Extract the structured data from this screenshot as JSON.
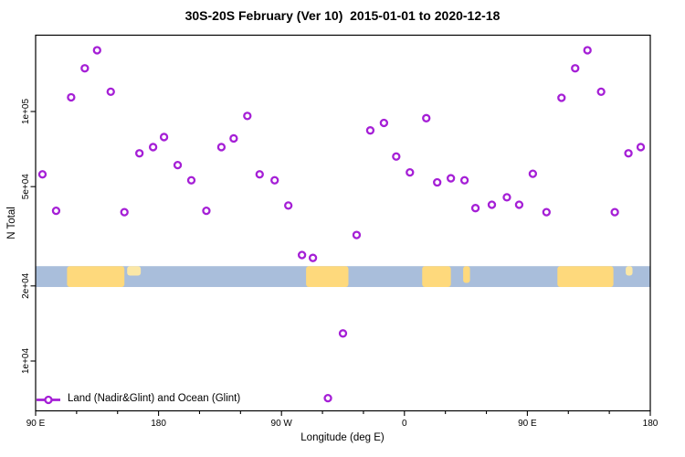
{
  "title": "30S-20S February (Ver 10)  2015-01-01 to 2020-12-18",
  "legend": {
    "label": "Land (Nadir&Glint) and Ocean (Glint)"
  },
  "colors": {
    "marker": "#a51fd6",
    "ocean": "#a9bedb",
    "land": "#fed97c",
    "land_light": "#fbe7a6",
    "axis": "#000000"
  },
  "chart_data": {
    "type": "scatter",
    "title": "30S-20S February (Ver 10)  2015-01-01 to 2020-12-18",
    "xlabel": "Longitude (deg E)",
    "ylabel": "N Total",
    "legend_position": "bottom-left",
    "grid": false,
    "x_axis": {
      "min": 90,
      "max": 540,
      "wraps_longitude": true,
      "minor_tick_step": 30,
      "major_ticks": [
        {
          "deg": 90,
          "label": "90 E"
        },
        {
          "deg": 180,
          "label": "180"
        },
        {
          "deg": 270,
          "label": "90 W"
        },
        {
          "deg": 360,
          "label": "0"
        },
        {
          "deg": 450,
          "label": "90 E"
        },
        {
          "deg": 540,
          "label": "180"
        }
      ]
    },
    "y_axis": {
      "scale": "log",
      "min": 6300,
      "max": 202000,
      "major_ticks": [
        {
          "n": 100000,
          "label": "1e+05"
        },
        {
          "n": 50000,
          "label": "5e+04"
        },
        {
          "n": 20000,
          "label": "2e+04"
        },
        {
          "n": 10000,
          "label": "1e+04"
        }
      ]
    },
    "map_band": {
      "n_top": 24000,
      "n_bottom": 19800,
      "land_segments": [
        {
          "from": 113,
          "to": 155,
          "h": 1,
          "light": false
        },
        {
          "from": 157,
          "to": 167,
          "h": 0.45,
          "light": true
        },
        {
          "from": 288,
          "to": 319,
          "h": 1,
          "light": false
        },
        {
          "from": 373,
          "to": 394,
          "h": 1,
          "light": false
        },
        {
          "from": 403,
          "to": 408,
          "h": 0.8,
          "light": false
        },
        {
          "from": 472,
          "to": 513,
          "h": 1,
          "light": false
        },
        {
          "from": 522,
          "to": 527,
          "h": 0.45,
          "light": true
        }
      ]
    },
    "series": [
      {
        "name": "Land (Nadir&Glint) and Ocean (Glint)",
        "points": [
          {
            "lon": 95,
            "n": 56000
          },
          {
            "lon": 105,
            "n": 40000
          },
          {
            "lon": 116,
            "n": 114000
          },
          {
            "lon": 126,
            "n": 149000
          },
          {
            "lon": 135,
            "n": 176000
          },
          {
            "lon": 145,
            "n": 120000
          },
          {
            "lon": 155,
            "n": 39500
          },
          {
            "lon": 166,
            "n": 68000
          },
          {
            "lon": 176,
            "n": 72000
          },
          {
            "lon": 184,
            "n": 79000
          },
          {
            "lon": 194,
            "n": 61000
          },
          {
            "lon": 204,
            "n": 53000
          },
          {
            "lon": 215,
            "n": 40000
          },
          {
            "lon": 226,
            "n": 72000
          },
          {
            "lon": 235,
            "n": 78000
          },
          {
            "lon": 245,
            "n": 96000
          },
          {
            "lon": 254,
            "n": 56000
          },
          {
            "lon": 265,
            "n": 53000
          },
          {
            "lon": 275,
            "n": 42000
          },
          {
            "lon": 285,
            "n": 26600
          },
          {
            "lon": 293,
            "n": 25900
          },
          {
            "lon": 304,
            "n": 7100
          },
          {
            "lon": 315,
            "n": 12900
          },
          {
            "lon": 325,
            "n": 32000
          },
          {
            "lon": 335,
            "n": 84000
          },
          {
            "lon": 345,
            "n": 90000
          },
          {
            "lon": 354,
            "n": 66000
          },
          {
            "lon": 364,
            "n": 57000
          },
          {
            "lon": 376,
            "n": 94000
          },
          {
            "lon": 384,
            "n": 52000
          },
          {
            "lon": 394,
            "n": 54000
          },
          {
            "lon": 404,
            "n": 53000
          },
          {
            "lon": 412,
            "n": 41000
          },
          {
            "lon": 424,
            "n": 42300
          },
          {
            "lon": 435,
            "n": 45300
          },
          {
            "lon": 444,
            "n": 42300
          },
          {
            "lon": 454,
            "n": 56300
          },
          {
            "lon": 464,
            "n": 39500
          },
          {
            "lon": 475,
            "n": 113500
          },
          {
            "lon": 485,
            "n": 149000
          },
          {
            "lon": 494,
            "n": 176000
          },
          {
            "lon": 504,
            "n": 120000
          },
          {
            "lon": 514,
            "n": 39500
          },
          {
            "lon": 524,
            "n": 68000
          },
          {
            "lon": 533,
            "n": 72000
          }
        ]
      }
    ]
  }
}
